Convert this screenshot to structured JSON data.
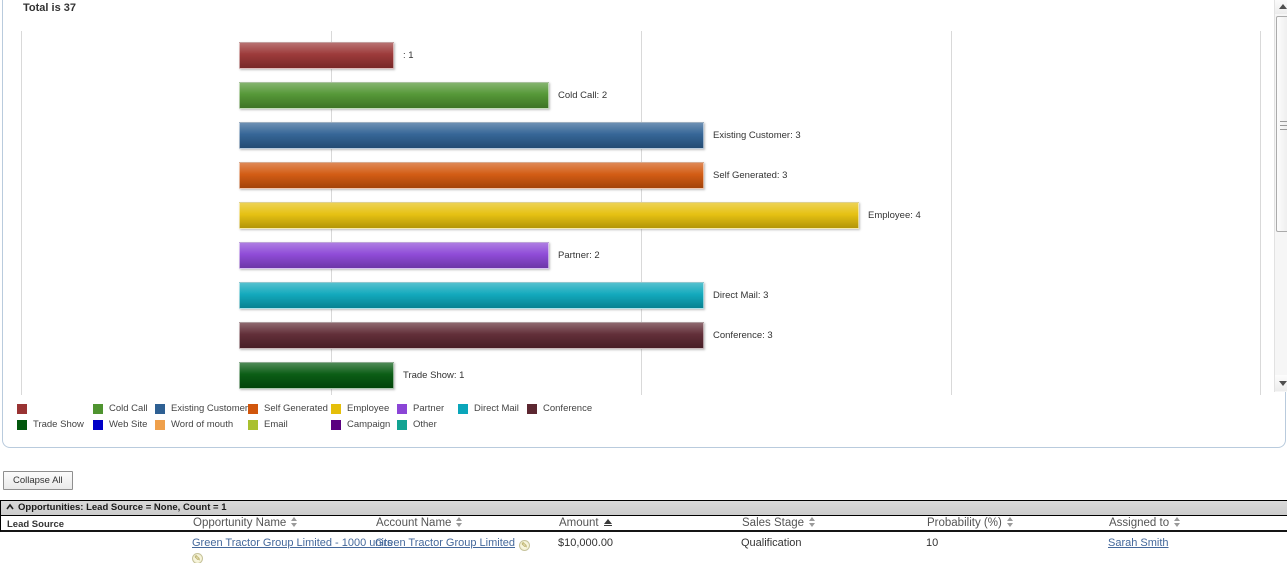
{
  "colors": {
    "panel_border": "#b9cbdd",
    "gridline": "#d9d9d9",
    "link": "#44689b",
    "group_bar_bg": "#d4d4d4"
  },
  "chart_panel": {
    "total_label": "Total is 37",
    "chart_data": {
      "type": "bar",
      "orientation": "horizontal",
      "title": "Total is 37",
      "total": 37,
      "xlim": [
        0,
        4
      ],
      "grid": true,
      "legend_position": "bottom",
      "bars": [
        {
          "category": "",
          "label": ": 1",
          "value": 1,
          "color": "#993333"
        },
        {
          "category": "Cold Call",
          "label": "Cold Call: 2",
          "value": 2,
          "color": "#4f9430"
        },
        {
          "category": "Existing Customer",
          "label": "Existing Customer: 3",
          "value": 3,
          "color": "#2e6093"
        },
        {
          "category": "Self Generated",
          "label": "Self Generated: 3",
          "value": 3,
          "color": "#d1560c"
        },
        {
          "category": "Employee",
          "label": "Employee: 4",
          "value": 4,
          "color": "#e5bf0a"
        },
        {
          "category": "Partner",
          "label": "Partner: 2",
          "value": 2,
          "color": "#8b45d6"
        },
        {
          "category": "Direct Mail",
          "label": "Direct Mail: 3",
          "value": 3,
          "color": "#0aa6ba"
        },
        {
          "category": "Conference",
          "label": "Conference: 3",
          "value": 3,
          "color": "#5c2731"
        },
        {
          "category": "Trade Show",
          "label": "Trade Show: 1",
          "value": 1,
          "color": "#02570d"
        }
      ]
    },
    "legend_rows": [
      [
        {
          "label": "",
          "color": "#993333"
        },
        {
          "label": "Cold Call",
          "color": "#4f9430"
        },
        {
          "label": "Existing Customer",
          "color": "#2e6093"
        },
        {
          "label": "Self Generated",
          "color": "#d1560c"
        },
        {
          "label": "Employee",
          "color": "#e5bf0a"
        },
        {
          "label": "Partner",
          "color": "#8b45d6"
        },
        {
          "label": "Direct Mail",
          "color": "#0aa6ba"
        },
        {
          "label": "Conference",
          "color": "#5c2731"
        }
      ],
      [
        {
          "label": "Trade Show",
          "color": "#02570d"
        },
        {
          "label": "Web Site",
          "color": "#0000c8"
        },
        {
          "label": "Word of mouth",
          "color": "#efa04b"
        },
        {
          "label": "Email",
          "color": "#a9c02f"
        },
        {
          "label": "Campaign",
          "color": "#5a0080"
        },
        {
          "label": "Other",
          "color": "#12a392"
        }
      ]
    ]
  },
  "toolbar": {
    "collapse_all_label": "Collapse All"
  },
  "table": {
    "group_header": "Opportunities: Lead Source = None, Count = 1",
    "columns": [
      {
        "label": "Lead Source",
        "sort": "none"
      },
      {
        "label": "Opportunity Name",
        "sort": "both"
      },
      {
        "label": "Account Name",
        "sort": "both"
      },
      {
        "label": "Amount",
        "sort": "asc"
      },
      {
        "label": "Sales Stage",
        "sort": "both"
      },
      {
        "label": "Probability (%)",
        "sort": "both"
      },
      {
        "label": "Assigned to",
        "sort": "both"
      }
    ],
    "row": {
      "lead_source": "",
      "opportunity_name": "Green Tractor Group Limited - 1000 units",
      "account_name": "Green Tractor Group Limited",
      "amount": "$10,000.00",
      "sales_stage": "Qualification",
      "probability": "10",
      "assigned_to": "Sarah Smith"
    }
  }
}
